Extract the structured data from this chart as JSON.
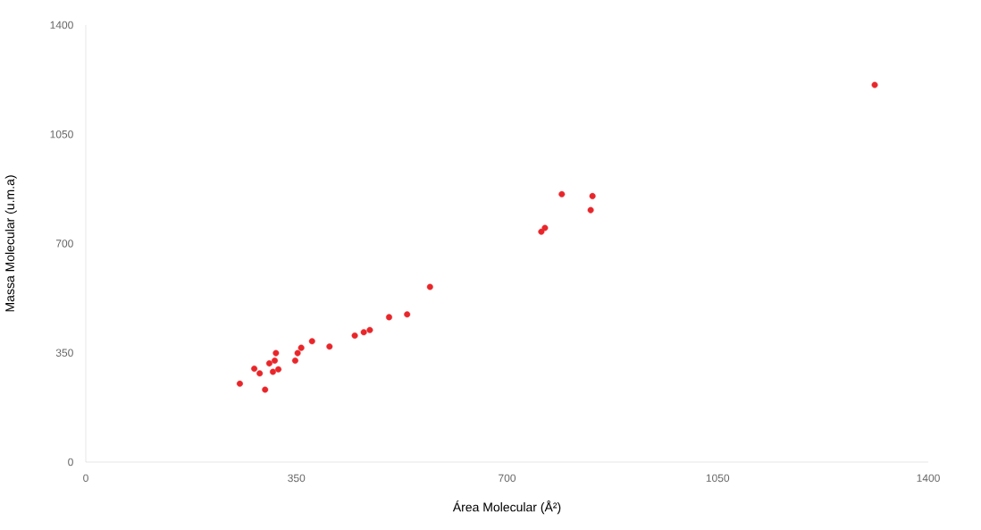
{
  "chart_data": {
    "type": "scatter",
    "xlabel": "Área Molecular  (Å²)",
    "ylabel": "Massa Molecular (u.m.a)",
    "x": [
      256,
      298,
      280,
      289,
      305,
      316,
      314,
      311,
      320,
      348,
      352,
      358,
      376,
      405,
      447,
      462,
      472,
      504,
      534,
      572,
      791,
      842,
      839,
      757,
      763,
      1311
    ],
    "series": [
      {
        "color": "#e8262a",
        "values": [
          251,
          232,
          299,
          284,
          316,
          349,
          325,
          289,
          297,
          325,
          349,
          366,
          387,
          370,
          405,
          416,
          423,
          464,
          473,
          561,
          858,
          852,
          807,
          738,
          750,
          1208
        ]
      }
    ],
    "xlim": [
      0,
      1400
    ],
    "ylim": [
      0,
      1400
    ],
    "xticks": [
      0,
      350,
      700,
      1050,
      1400
    ],
    "yticks": [
      0,
      350,
      700,
      1050,
      1400
    ],
    "marker": "circle",
    "grid": false
  }
}
